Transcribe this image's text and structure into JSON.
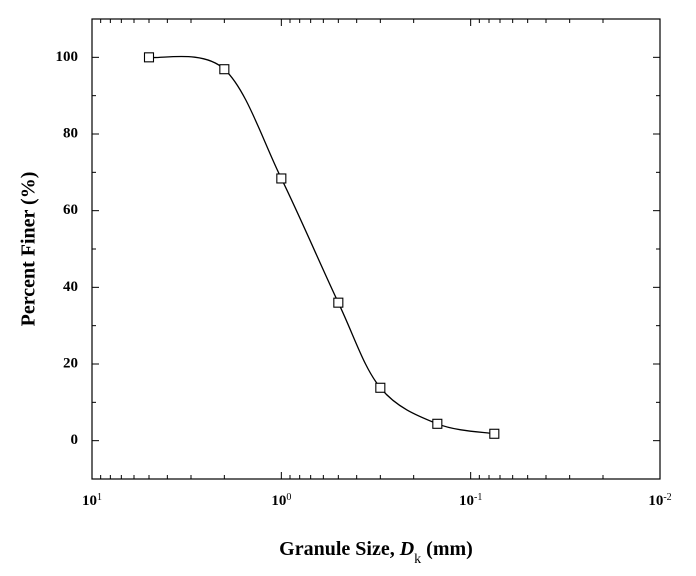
{
  "chart_data": {
    "type": "line",
    "xlabel": "Granule Size, D_k (mm)",
    "ylabel": "Percent Finer (%)",
    "x": [
      5,
      2,
      1,
      0.5,
      0.3,
      0.15,
      0.075
    ],
    "series": [
      {
        "name": "Percent Finer",
        "color": "#000000",
        "values": [
          100,
          96.9,
          68.4,
          36,
          13.8,
          4.4,
          1.8
        ]
      }
    ],
    "xscale": "log",
    "xreversed": true,
    "xlim": [
      10,
      0.01
    ],
    "xticks": [
      {
        "value": 10,
        "label": "10^1"
      },
      {
        "value": 1,
        "label": "10^0"
      },
      {
        "value": 0.1,
        "label": "10^-1"
      },
      {
        "value": 0.01,
        "label": "10^-2"
      }
    ],
    "ylim": [
      -10,
      110
    ],
    "yticks": [
      0,
      20,
      40,
      60,
      80,
      100
    ],
    "marker": "square"
  }
}
